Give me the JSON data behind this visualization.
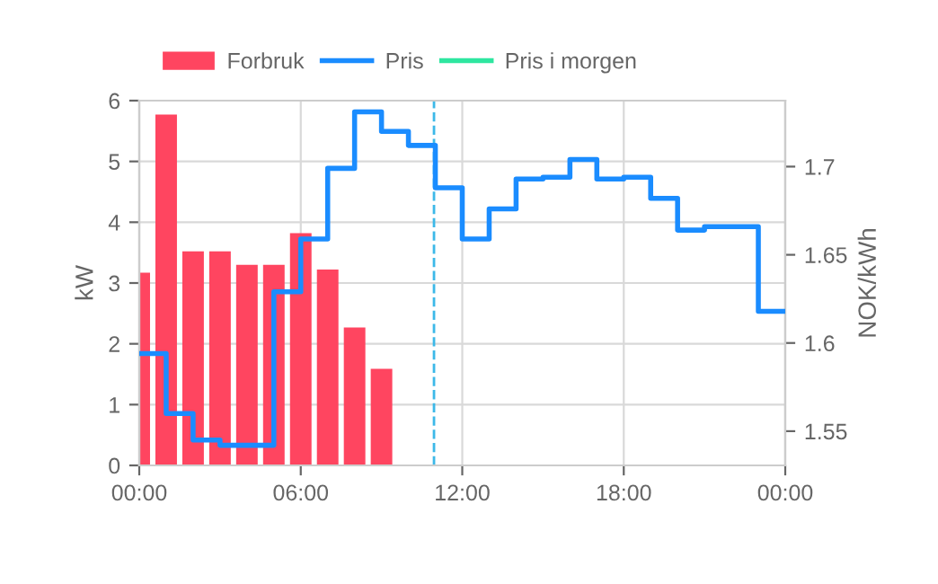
{
  "chart_data": {
    "type": "bar",
    "ylabel": "kW",
    "y2label": "NOK/kWh",
    "series": [
      {
        "name": "Forbruk",
        "color": "#ff4560",
        "x": [
          0,
          1,
          2,
          3,
          4,
          5,
          6,
          7,
          8,
          9
        ],
        "values": [
          3.17,
          5.77,
          3.52,
          3.52,
          3.3,
          3.3,
          3.82,
          3.22,
          2.27,
          1.59
        ]
      },
      {
        "name": "Pris",
        "type": "step",
        "axis": "y2",
        "color": "#1a8cff",
        "x": [
          0,
          1,
          2,
          3,
          4,
          5,
          6,
          7,
          8,
          9,
          10,
          11,
          12,
          13,
          14,
          15,
          16,
          17,
          18,
          19,
          20,
          21,
          22,
          23,
          24
        ],
        "values": [
          1.594,
          1.56,
          1.545,
          1.542,
          1.542,
          1.629,
          1.659,
          1.699,
          1.731,
          1.72,
          1.712,
          1.688,
          1.659,
          1.676,
          1.693,
          1.694,
          1.704,
          1.693,
          1.694,
          1.682,
          1.664,
          1.666,
          1.666,
          1.618,
          1.618
        ]
      },
      {
        "name": "Pris i morgen",
        "type": "step",
        "axis": "y2",
        "color": "#2ee6a0"
      }
    ],
    "xlim": [
      0,
      24
    ],
    "xticks": [
      {
        "value": 0,
        "label": "00:00"
      },
      {
        "value": 6,
        "label": "06:00"
      },
      {
        "value": 12,
        "label": "12:00"
      },
      {
        "value": 18,
        "label": "18:00"
      },
      {
        "value": 24,
        "label": "00:00"
      }
    ],
    "ylim": [
      0,
      6
    ],
    "yticks": [
      0,
      1,
      2,
      3,
      4,
      5,
      6
    ],
    "y2lim": [
      1.5306,
      1.7374
    ],
    "y2ticks": [
      1.55,
      1.6,
      1.65,
      1.7
    ],
    "ref_lines": [
      {
        "axis": "x",
        "value": 10.95,
        "label": null,
        "color": "#3cb8e8",
        "line_style": "dashed"
      }
    ],
    "grid": true,
    "legend": "top left"
  }
}
